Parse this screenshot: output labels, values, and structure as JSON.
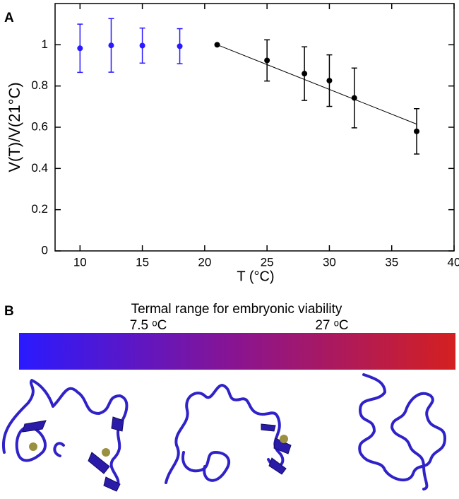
{
  "chart_data": {
    "type": "scatter",
    "panel_label": "A",
    "xlabel": "T (°C)",
    "ylabel": "V(T)/V(21°C)",
    "xlim": [
      8,
      40
    ],
    "ylim": [
      0,
      1.2
    ],
    "xticks": [
      10,
      15,
      20,
      25,
      30,
      35,
      40
    ],
    "yticks": [
      0,
      0.2,
      0.4,
      0.6,
      0.8,
      1
    ],
    "series": [
      {
        "color": "#2a1aff",
        "x": [
          10,
          12.5,
          15,
          18
        ],
        "values": [
          0.983,
          0.997,
          0.996,
          0.993
        ],
        "errors": [
          0.117,
          0.13,
          0.085,
          0.085
        ]
      },
      {
        "color": "#000000",
        "x": [
          21,
          25,
          28,
          30,
          32,
          37
        ],
        "values": [
          1.0,
          0.924,
          0.86,
          0.826,
          0.742,
          0.58
        ],
        "errors": [
          null,
          0.1,
          0.13,
          0.125,
          0.145,
          0.11
        ]
      }
    ],
    "fit_line": {
      "color": "#000000",
      "x": [
        21,
        37
      ],
      "values": [
        1.0,
        0.615
      ]
    }
  },
  "panel_b": {
    "panel_label": "B",
    "colorbar_title": "Termal range for embryonic viability",
    "colorbar_labels": [
      "7.5 ᵒC",
      "27 ᵒC"
    ],
    "colors": [
      "#2a1aff",
      "#8a1490",
      "#d42020"
    ]
  }
}
